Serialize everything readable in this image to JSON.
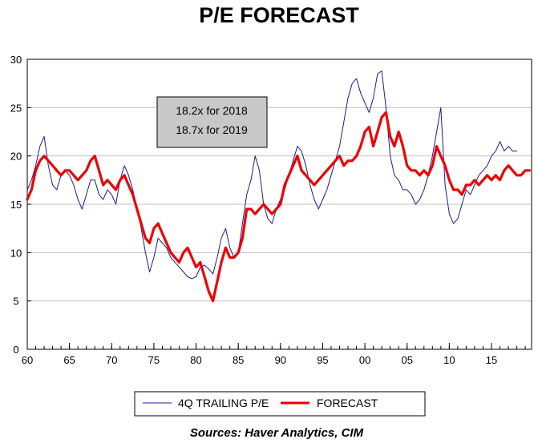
{
  "chart_data": {
    "type": "line",
    "title": "P/E FORECAST",
    "ylim": [
      0,
      30
    ],
    "yticks": [
      "0",
      "5",
      "10",
      "15",
      "20",
      "25",
      "30"
    ],
    "xlim": [
      1960,
      2019.75
    ],
    "xticks": [
      {
        "x": 1960,
        "label": "60"
      },
      {
        "x": 1965,
        "label": "65"
      },
      {
        "x": 1970,
        "label": "70"
      },
      {
        "x": 1975,
        "label": "75"
      },
      {
        "x": 1980,
        "label": "80"
      },
      {
        "x": 1985,
        "label": "85"
      },
      {
        "x": 1990,
        "label": "90"
      },
      {
        "x": 1995,
        "label": "95"
      },
      {
        "x": 2000,
        "label": "00"
      },
      {
        "x": 2005,
        "label": "05"
      },
      {
        "x": 2010,
        "label": "10"
      },
      {
        "x": 2015,
        "label": "15"
      }
    ],
    "grid": "horizontal",
    "legend_position": "bottom",
    "annotation": [
      "18.2x  for 2018",
      "18.7x  for 2019"
    ],
    "source": "Sources:  Haver Analytics, CIM",
    "series": [
      {
        "name": "4Q TRAILING P/E",
        "color": "#1a1aa6",
        "x": [
          1960.0,
          1960.5,
          1961.0,
          1961.5,
          1962.0,
          1962.5,
          1963.0,
          1963.5,
          1964.0,
          1964.5,
          1965.0,
          1965.5,
          1966.0,
          1966.5,
          1967.0,
          1967.5,
          1968.0,
          1968.5,
          1969.0,
          1969.5,
          1970.0,
          1970.5,
          1971.0,
          1971.5,
          1972.0,
          1972.5,
          1973.0,
          1973.5,
          1974.0,
          1974.5,
          1975.0,
          1975.5,
          1976.0,
          1976.5,
          1977.0,
          1977.5,
          1978.0,
          1978.5,
          1979.0,
          1979.5,
          1980.0,
          1980.5,
          1981.0,
          1981.5,
          1982.0,
          1982.5,
          1983.0,
          1983.5,
          1984.0,
          1984.5,
          1985.0,
          1985.5,
          1986.0,
          1986.5,
          1987.0,
          1987.5,
          1988.0,
          1988.5,
          1989.0,
          1989.5,
          1990.0,
          1990.5,
          1991.0,
          1991.5,
          1992.0,
          1992.5,
          1993.0,
          1993.5,
          1994.0,
          1994.5,
          1995.0,
          1995.5,
          1996.0,
          1996.5,
          1997.0,
          1997.5,
          1998.0,
          1998.5,
          1999.0,
          1999.5,
          2000.0,
          2000.5,
          2001.0,
          2001.5,
          2002.0,
          2002.5,
          2003.0,
          2003.5,
          2004.0,
          2004.5,
          2005.0,
          2005.5,
          2006.0,
          2006.5,
          2007.0,
          2007.5,
          2008.0,
          2008.5,
          2009.0,
          2009.5,
          2010.0,
          2010.5,
          2011.0,
          2011.5,
          2012.0,
          2012.5,
          2013.0,
          2013.5,
          2014.0,
          2014.5,
          2015.0,
          2015.5,
          2016.0,
          2016.5,
          2017.0,
          2017.5,
          2018.0
        ],
        "y": [
          16.5,
          17.5,
          19.0,
          21.0,
          22.0,
          19.0,
          17.0,
          16.5,
          18.0,
          18.5,
          18.0,
          17.0,
          15.5,
          14.5,
          16.0,
          17.5,
          17.5,
          16.0,
          15.5,
          16.5,
          16.0,
          15.0,
          17.5,
          19.0,
          18.0,
          16.5,
          14.5,
          12.5,
          10.0,
          8.0,
          9.5,
          11.5,
          11.0,
          10.5,
          9.5,
          9.0,
          8.5,
          8.0,
          7.5,
          7.3,
          7.5,
          8.5,
          8.7,
          8.3,
          7.8,
          9.5,
          11.5,
          12.5,
          10.5,
          9.5,
          10.0,
          13.0,
          16.0,
          17.5,
          20.0,
          18.5,
          15.0,
          13.5,
          13.0,
          14.5,
          15.5,
          16.5,
          18.0,
          19.5,
          21.0,
          20.5,
          19.0,
          17.0,
          15.5,
          14.5,
          15.5,
          16.5,
          18.0,
          19.5,
          21.0,
          23.5,
          26.0,
          27.5,
          28.0,
          26.5,
          25.5,
          24.5,
          26.0,
          28.5,
          28.8,
          25.0,
          20.0,
          18.0,
          17.5,
          16.5,
          16.5,
          16.0,
          15.0,
          15.5,
          16.5,
          18.0,
          20.0,
          22.5,
          25.0,
          17.0,
          14.0,
          13.0,
          13.5,
          15.0,
          16.5,
          16.0,
          17.0,
          18.0,
          18.5,
          19.0,
          20.0,
          20.5,
          21.5,
          20.5,
          21.0,
          20.5,
          20.5
        ]
      },
      {
        "name": "FORECAST",
        "color": "#ee0000",
        "x": [
          1960.0,
          1960.5,
          1961.0,
          1961.5,
          1962.0,
          1962.5,
          1963.0,
          1963.5,
          1964.0,
          1964.5,
          1965.0,
          1965.5,
          1966.0,
          1966.5,
          1967.0,
          1967.5,
          1968.0,
          1968.5,
          1969.0,
          1969.5,
          1970.0,
          1970.5,
          1971.0,
          1971.5,
          1972.0,
          1972.5,
          1973.0,
          1973.5,
          1974.0,
          1974.5,
          1975.0,
          1975.5,
          1976.0,
          1976.5,
          1977.0,
          1977.5,
          1978.0,
          1978.5,
          1979.0,
          1979.5,
          1980.0,
          1980.5,
          1981.0,
          1981.5,
          1982.0,
          1982.5,
          1983.0,
          1983.5,
          1984.0,
          1984.5,
          1985.0,
          1985.5,
          1986.0,
          1986.5,
          1987.0,
          1987.5,
          1988.0,
          1988.5,
          1989.0,
          1989.5,
          1990.0,
          1990.5,
          1991.0,
          1991.5,
          1992.0,
          1992.5,
          1993.0,
          1993.5,
          1994.0,
          1994.5,
          1995.0,
          1995.5,
          1996.0,
          1996.5,
          1997.0,
          1997.5,
          1998.0,
          1998.5,
          1999.0,
          1999.5,
          2000.0,
          2000.5,
          2001.0,
          2001.5,
          2002.0,
          2002.5,
          2003.0,
          2003.5,
          2004.0,
          2004.5,
          2005.0,
          2005.5,
          2006.0,
          2006.5,
          2007.0,
          2007.5,
          2008.0,
          2008.5,
          2009.0,
          2009.5,
          2010.0,
          2010.5,
          2011.0,
          2011.5,
          2012.0,
          2012.5,
          2013.0,
          2013.5,
          2014.0,
          2014.5,
          2015.0,
          2015.5,
          2016.0,
          2016.5,
          2017.0,
          2017.5,
          2018.0,
          2018.5,
          2019.0,
          2019.5
        ],
        "y": [
          15.5,
          16.5,
          18.5,
          19.5,
          20.0,
          19.5,
          19.0,
          18.5,
          18.0,
          18.5,
          18.5,
          18.0,
          17.5,
          18.0,
          18.5,
          19.5,
          20.0,
          18.5,
          17.0,
          17.5,
          17.0,
          16.5,
          17.5,
          18.0,
          17.0,
          16.0,
          14.5,
          13.0,
          11.5,
          11.0,
          12.5,
          13.0,
          12.0,
          11.0,
          10.0,
          9.5,
          9.0,
          10.0,
          10.5,
          9.5,
          8.5,
          9.0,
          7.5,
          6.0,
          5.0,
          7.0,
          9.0,
          10.5,
          9.5,
          9.5,
          10.0,
          11.5,
          14.5,
          14.5,
          14.0,
          14.5,
          15.0,
          14.5,
          14.0,
          14.5,
          15.0,
          17.0,
          18.0,
          19.0,
          20.0,
          18.5,
          18.0,
          17.5,
          17.0,
          17.5,
          18.0,
          18.5,
          19.0,
          19.5,
          20.0,
          19.0,
          19.5,
          19.5,
          20.0,
          21.0,
          22.5,
          23.0,
          21.0,
          22.5,
          24.0,
          24.5,
          22.0,
          21.0,
          22.5,
          21.0,
          19.0,
          18.5,
          18.5,
          18.0,
          18.5,
          18.0,
          19.0,
          21.0,
          20.0,
          19.0,
          17.5,
          16.5,
          16.5,
          16.0,
          17.0,
          17.0,
          17.5,
          17.0,
          17.5,
          18.0,
          17.5,
          18.0,
          17.5,
          18.5,
          19.0,
          18.5,
          18.0,
          18.0,
          18.5,
          18.5
        ]
      }
    ]
  }
}
